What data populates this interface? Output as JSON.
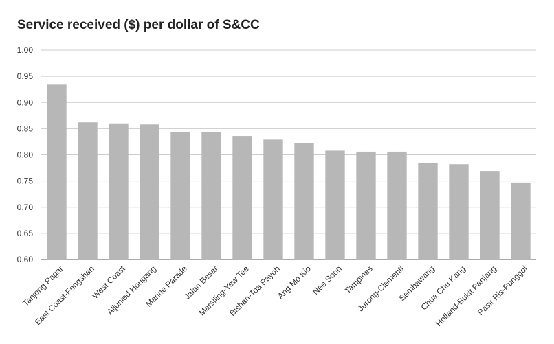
{
  "chart_data": {
    "type": "bar",
    "title": "Service received ($) per dollar of S&CC",
    "xlabel": "",
    "ylabel": "",
    "ylim": [
      0.6,
      1.0
    ],
    "yticks": [
      "0.60",
      "0.65",
      "0.70",
      "0.75",
      "0.80",
      "0.85",
      "0.90",
      "0.95",
      "1.00"
    ],
    "grid": true,
    "legend": "none",
    "bar_color": "#b7b7b7",
    "categories": [
      "Tanjong Pagar",
      "East Coast-Fengshan",
      "West Coast",
      "Aljunied Hougang",
      "Marine Parade",
      "Jalan Besar",
      "Marsiling-Yew Tee",
      "Bishan-Toa Payoh",
      "Ang Mo Kio",
      "Nee Soon",
      "Tampines",
      "Jurong-Clementi",
      "Sembawang",
      "Chua Chu Kang",
      "Holland-Bukit Panjang",
      "Pasir Ris-Punggol"
    ],
    "values": [
      0.934,
      0.862,
      0.86,
      0.858,
      0.844,
      0.844,
      0.836,
      0.829,
      0.823,
      0.808,
      0.806,
      0.806,
      0.784,
      0.782,
      0.769,
      0.747
    ]
  }
}
